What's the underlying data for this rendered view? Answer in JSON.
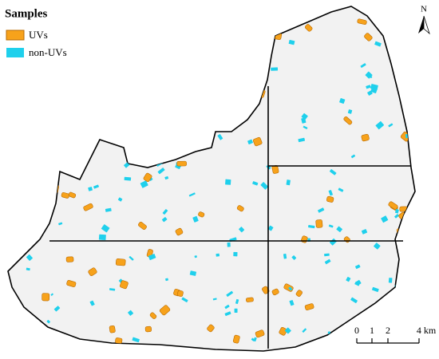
{
  "legend": {
    "title": "Samples",
    "items": [
      "UVs",
      "non-UVs"
    ]
  },
  "north_arrow": "N",
  "scale_bar": [
    "0",
    "1",
    "2",
    "4 km"
  ]
}
